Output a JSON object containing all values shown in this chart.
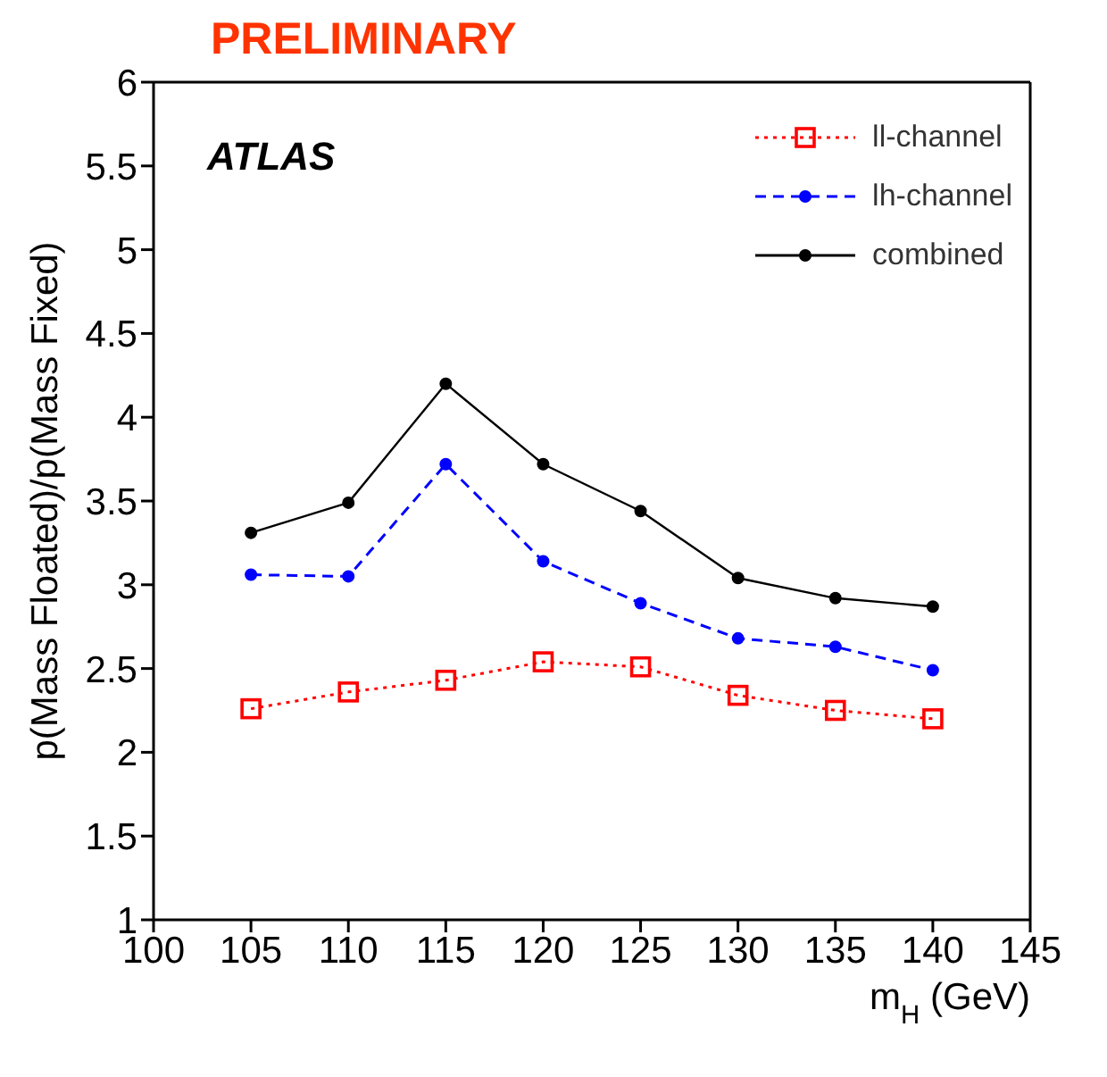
{
  "chart_data": {
    "type": "line",
    "title": "PRELIMINARY",
    "xlabel": "m$_{H}$ (GeV)",
    "ylabel": "p(Mass Floated)/p(Mass Fixed)",
    "annotations": [
      "ATLAS"
    ],
    "x": [
      105,
      110,
      115,
      120,
      125,
      130,
      135,
      140
    ],
    "series": [
      {
        "name": "ll-channel",
        "color": "#ff0000",
        "marker": "square",
        "line_style": "dotted",
        "values": [
          2.26,
          2.36,
          2.43,
          2.54,
          2.51,
          2.34,
          2.25,
          2.2
        ]
      },
      {
        "name": "lh-channel",
        "color": "#0000ff",
        "marker": "circle",
        "line_style": "dashed",
        "values": [
          3.06,
          3.05,
          3.72,
          3.14,
          2.89,
          2.68,
          2.63,
          2.49
        ]
      },
      {
        "name": "combined",
        "color": "#000000",
        "marker": "circle",
        "line_style": "solid",
        "values": [
          3.31,
          3.49,
          4.2,
          3.72,
          3.44,
          3.04,
          2.92,
          2.87
        ]
      }
    ],
    "xlim": [
      100,
      145
    ],
    "xticks": [
      100,
      105,
      110,
      115,
      120,
      125,
      130,
      135,
      140,
      145
    ],
    "ylim": [
      1,
      6
    ],
    "yticks": [
      1,
      1.5,
      2,
      2.5,
      3,
      3.5,
      4,
      4.5,
      5,
      5.5,
      6
    ],
    "grid": false,
    "legend": "top right"
  }
}
